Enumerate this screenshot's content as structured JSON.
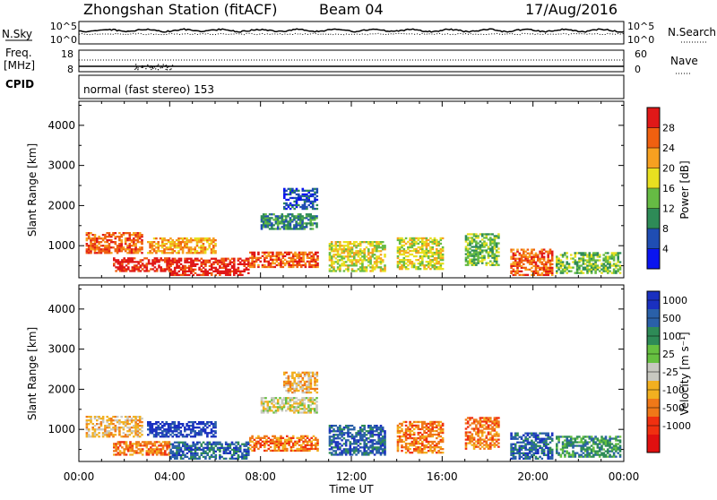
{
  "header": {
    "station": "Zhongshan Station (fitACF)",
    "beam": "Beam 04",
    "date": "17/Aug/2016"
  },
  "top_panel": {
    "left_label": "N.Sky",
    "right_label": "N.Search",
    "left_ticks": [
      "10^5",
      "10^0"
    ],
    "right_ticks": [
      "10^5",
      "10^0"
    ]
  },
  "freq_panel": {
    "left_label_line1": "Freq.",
    "left_label_line2": "[MHz]",
    "left_ticks": [
      "18",
      "8"
    ],
    "right_label": "Nave",
    "right_ticks": [
      "60",
      "0"
    ]
  },
  "cpid": {
    "label": "CPID",
    "mode": "normal (fast stereo) 153"
  },
  "chart_data": [
    {
      "type": "heatmap",
      "name": "power",
      "ylabel": "Slant Range [km]",
      "yticks": [
        "1000",
        "2000",
        "3000",
        "4000"
      ],
      "ylim": [
        200,
        4600
      ],
      "xlim": [
        0,
        24
      ],
      "colorbar": {
        "label": "Power [dB]",
        "ticks": [
          "4",
          "8",
          "12",
          "16",
          "20",
          "24",
          "28"
        ],
        "colors": [
          "#0a14f0",
          "#1f4db3",
          "#2e8b57",
          "#66bb44",
          "#e8e020",
          "#f7a020",
          "#f06010",
          "#e01818"
        ]
      },
      "regions": [
        {
          "x": [
            0.3,
            2.8
          ],
          "y": [
            800,
            1300
          ],
          "level": 6
        },
        {
          "x": [
            1.5,
            4.0
          ],
          "y": [
            350,
            700
          ],
          "level": 7
        },
        {
          "x": [
            4.0,
            7.5
          ],
          "y": [
            250,
            700
          ],
          "level": 7
        },
        {
          "x": [
            3.0,
            6.0
          ],
          "y": [
            800,
            1200
          ],
          "level": 5
        },
        {
          "x": [
            7.5,
            10.5
          ],
          "y": [
            450,
            850
          ],
          "level": 6
        },
        {
          "x": [
            8.0,
            10.5
          ],
          "y": [
            1400,
            1800
          ],
          "level": 2
        },
        {
          "x": [
            9.0,
            10.5
          ],
          "y": [
            1900,
            2400
          ],
          "level": 1
        },
        {
          "x": [
            11.0,
            13.5
          ],
          "y": [
            350,
            1100
          ],
          "level": 4
        },
        {
          "x": [
            14.0,
            16.0
          ],
          "y": [
            400,
            1200
          ],
          "level": 4
        },
        {
          "x": [
            17.0,
            18.5
          ],
          "y": [
            500,
            1300
          ],
          "level": 3
        },
        {
          "x": [
            19.0,
            20.8
          ],
          "y": [
            250,
            900
          ],
          "level": 6
        },
        {
          "x": [
            21.0,
            23.8
          ],
          "y": [
            300,
            800
          ],
          "level": 3
        }
      ]
    },
    {
      "type": "heatmap",
      "name": "velocity",
      "ylabel": "Slant Range [km]",
      "yticks": [
        "1000",
        "2000",
        "3000",
        "4000"
      ],
      "ylim": [
        200,
        4600
      ],
      "xlim": [
        0,
        24
      ],
      "colorbar": {
        "label": "Velocity [m s⁻¹]",
        "ticks": [
          "1000",
          "500",
          "100",
          "25",
          "-25",
          "-100",
          "-500",
          "-1000"
        ],
        "colors": [
          "#1a30c0",
          "#2a60a8",
          "#2e8b57",
          "#66c040",
          "#c8c8c0",
          "#f2b020",
          "#f07818",
          "#f03010",
          "#e01010"
        ]
      },
      "regions": [
        {
          "x": [
            0.3,
            2.8
          ],
          "y": [
            800,
            1300
          ],
          "level": 5
        },
        {
          "x": [
            1.5,
            4.0
          ],
          "y": [
            350,
            700
          ],
          "level": 6
        },
        {
          "x": [
            4.0,
            7.5
          ],
          "y": [
            250,
            700
          ],
          "level": 1
        },
        {
          "x": [
            3.0,
            6.0
          ],
          "y": [
            800,
            1200
          ],
          "level": 0
        },
        {
          "x": [
            7.5,
            10.5
          ],
          "y": [
            450,
            850
          ],
          "level": 6
        },
        {
          "x": [
            8.0,
            10.5
          ],
          "y": [
            1400,
            1800
          ],
          "level": 4
        },
        {
          "x": [
            9.0,
            10.5
          ],
          "y": [
            1900,
            2400
          ],
          "level": 5
        },
        {
          "x": [
            11.0,
            13.5
          ],
          "y": [
            350,
            1100
          ],
          "level": 1
        },
        {
          "x": [
            14.0,
            16.0
          ],
          "y": [
            400,
            1200
          ],
          "level": 6
        },
        {
          "x": [
            17.0,
            18.5
          ],
          "y": [
            500,
            1300
          ],
          "level": 6
        },
        {
          "x": [
            19.0,
            20.8
          ],
          "y": [
            250,
            900
          ],
          "level": 1
        },
        {
          "x": [
            21.0,
            23.8
          ],
          "y": [
            300,
            800
          ],
          "level": 2
        }
      ]
    }
  ],
  "xaxis": {
    "label": "Time UT",
    "ticks": [
      "00:00",
      "04:00",
      "08:00",
      "12:00",
      "16:00",
      "20:00",
      "00:00"
    ]
  }
}
